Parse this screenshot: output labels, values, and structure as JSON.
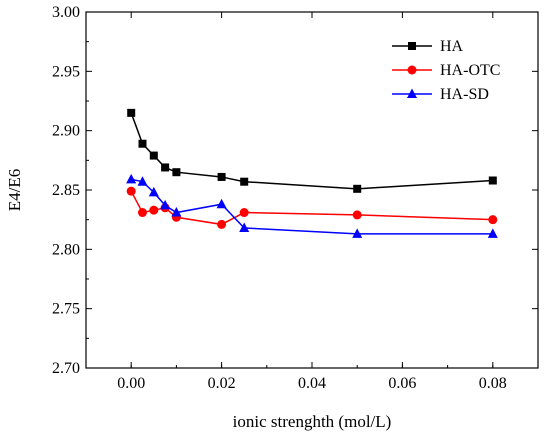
{
  "chart_data": {
    "type": "line",
    "title": "",
    "xlabel": "ionic strenghth (mol/L)",
    "ylabel": "E4/E6",
    "xlim": [
      -0.01,
      0.09
    ],
    "ylim": [
      2.7,
      3.0
    ],
    "xticks": [
      0.0,
      0.02,
      0.04,
      0.06,
      0.08
    ],
    "xtick_labels": [
      "0.00",
      "0.02",
      "0.04",
      "0.06",
      "0.08"
    ],
    "yticks": [
      2.7,
      2.75,
      2.8,
      2.85,
      2.9,
      2.95,
      3.0
    ],
    "ytick_labels": [
      "2.70",
      "2.75",
      "2.80",
      "2.85",
      "2.90",
      "2.95",
      "3.00"
    ],
    "grid": false,
    "legend_position": "top-right",
    "series": [
      {
        "name": "HA",
        "color": "#000000",
        "marker": "square",
        "points": [
          [
            0.0,
            2.915
          ],
          [
            0.0025,
            2.889
          ],
          [
            0.005,
            2.879
          ],
          [
            0.0075,
            2.869
          ],
          [
            0.01,
            2.865
          ],
          [
            0.02,
            2.861
          ],
          [
            0.025,
            2.857
          ],
          [
            0.05,
            2.851
          ],
          [
            0.08,
            2.858
          ]
        ]
      },
      {
        "name": "HA-OTC",
        "color": "#ff0000",
        "marker": "circle",
        "points": [
          [
            0.0,
            2.849
          ],
          [
            0.0025,
            2.831
          ],
          [
            0.005,
            2.833
          ],
          [
            0.0075,
            2.835
          ],
          [
            0.01,
            2.827
          ],
          [
            0.02,
            2.821
          ],
          [
            0.025,
            2.831
          ],
          [
            0.05,
            2.829
          ],
          [
            0.08,
            2.825
          ]
        ]
      },
      {
        "name": "HA-SD",
        "color": "#0000ff",
        "marker": "triangle",
        "points": [
          [
            0.0,
            2.859
          ],
          [
            0.0025,
            2.857
          ],
          [
            0.005,
            2.848
          ],
          [
            0.0075,
            2.837
          ],
          [
            0.01,
            2.831
          ],
          [
            0.02,
            2.838
          ],
          [
            0.025,
            2.818
          ],
          [
            0.05,
            2.813
          ],
          [
            0.08,
            2.813
          ]
        ]
      }
    ]
  }
}
